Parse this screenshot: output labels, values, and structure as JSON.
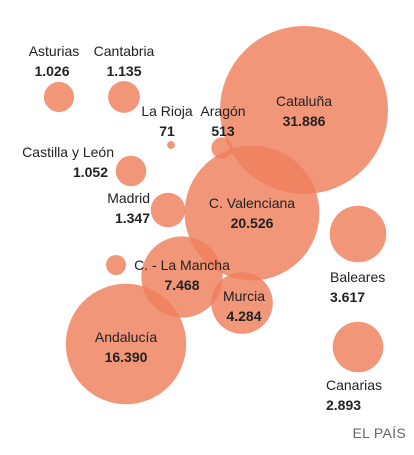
{
  "chart_data": {
    "type": "bubble",
    "points": [
      {
        "name": "Asturias",
        "value": "1.026"
      },
      {
        "name": "Cantabria",
        "value": "1.135"
      },
      {
        "name": "La Rioja",
        "value": "71"
      },
      {
        "name": "Aragón",
        "value": "513"
      },
      {
        "name": "Cataluña",
        "value": "31.886"
      },
      {
        "name": "Castilla y León",
        "value": "1.052"
      },
      {
        "name": "Madrid",
        "value": "1.347"
      },
      {
        "name": "C. Valenciana",
        "value": "20.526"
      },
      {
        "name": "C. - La Mancha",
        "value": "7.468"
      },
      {
        "name": "Baleares",
        "value": "3.617"
      },
      {
        "name": "Murcia",
        "value": "4.284"
      },
      {
        "name": "Andalucía",
        "value": "16.390"
      },
      {
        "name": "Canarias",
        "value": "2.893"
      }
    ]
  },
  "colors": {
    "bubble": "#ef7f5c",
    "bubble_opacity": "0.82"
  },
  "source": "EL PAÍS"
}
